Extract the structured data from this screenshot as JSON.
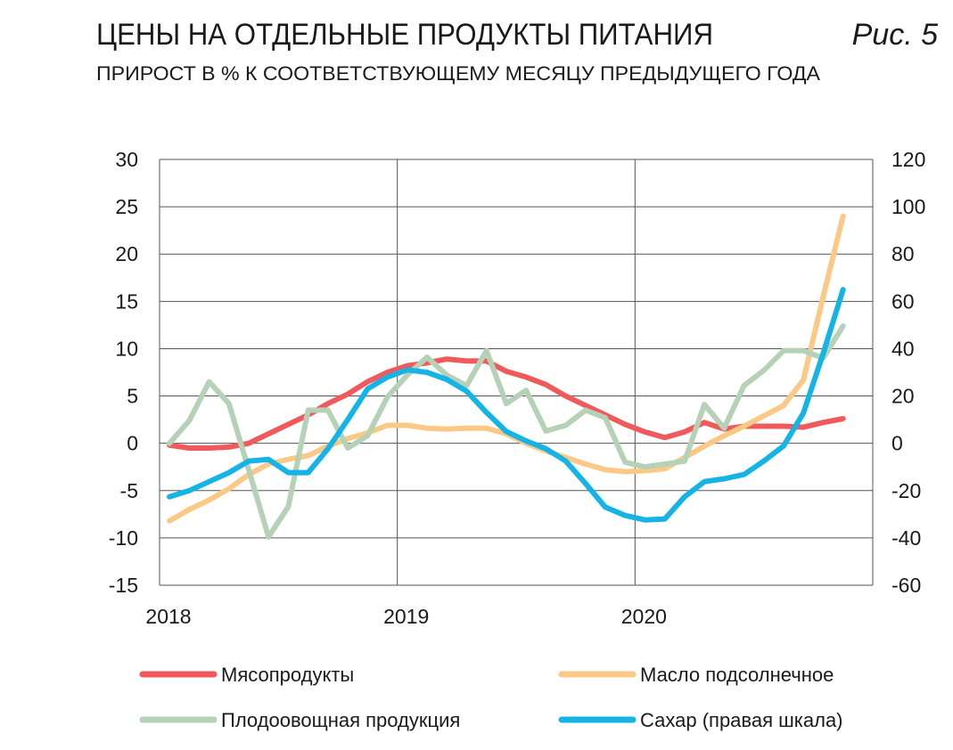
{
  "header": {
    "title": "ЦЕНЫ НА ОТДЕЛЬНЫЕ ПРОДУКТЫ ПИТАНИЯ",
    "figure_label": "Рис. 5",
    "subtitle": "ПРИРОСТ В % К СООТВЕТСТВУЮЩЕМУ МЕСЯЦУ ПРЕДЫДУЩЕГО ГОДА"
  },
  "chart_data": {
    "type": "line",
    "title": "ЦЕНЫ НА ОТДЕЛЬНЫЕ ПРОДУКТЫ ПИТАНИЯ",
    "subtitle": "ПРИРОСТ В % К СООТВЕТСТВУЮЩЕМУ МЕСЯЦУ ПРЕДЫДУЩЕГО ГОДА",
    "x_start": "2018-01",
    "x_end": "2020-11",
    "x_ticks": [
      "2018",
      "2019",
      "2020"
    ],
    "y_left": {
      "range": [
        -15,
        30
      ],
      "ticks": [
        "30",
        "25",
        "20",
        "15",
        "10",
        "5",
        "0",
        "-5",
        "-10",
        "-15"
      ]
    },
    "y_right": {
      "range": [
        -60,
        120
      ],
      "ticks": [
        "120",
        "100",
        "80",
        "60",
        "40",
        "20",
        "0",
        "-20",
        "-40",
        "-60"
      ]
    },
    "grid": true,
    "legend_position": "bottom",
    "series": [
      {
        "name": "Мясопродукты",
        "axis": "left",
        "color": "#f05a5b",
        "values": [
          -0.2,
          -0.5,
          -0.5,
          -0.4,
          0,
          1,
          2,
          3,
          4.2,
          5.2,
          6.5,
          7.5,
          8.2,
          8.5,
          8.9,
          8.7,
          8.7,
          7.6,
          7,
          6.2,
          5,
          4,
          3,
          2,
          1.2,
          0.6,
          1.2,
          2.2,
          1.5,
          1.8,
          1.8,
          1.8,
          1.7,
          2.2,
          2.6
        ]
      },
      {
        "name": "Масло подсолнечное",
        "axis": "left",
        "color": "#fbc985",
        "values": [
          -8.2,
          -7,
          -6,
          -4.8,
          -3.3,
          -2.2,
          -1.7,
          -1.3,
          -0.3,
          0.5,
          1.1,
          1.9,
          1.9,
          1.6,
          1.5,
          1.6,
          1.6,
          1.0,
          0,
          -0.8,
          -1.5,
          -2.2,
          -2.8,
          -3,
          -2.9,
          -2.7,
          -1.5,
          -0.3,
          0.8,
          1.8,
          2.9,
          4,
          6.7,
          15.5,
          24
        ]
      },
      {
        "name": "Плодоовощная продукция",
        "axis": "left",
        "color": "#b5d1b6",
        "values": [
          0,
          2.4,
          6.5,
          4.2,
          -2.8,
          -9.9,
          -6.7,
          3.5,
          3.5,
          -0.5,
          0.8,
          4.9,
          7.2,
          9.1,
          7.2,
          6.1,
          9.8,
          4.2,
          5.6,
          1.3,
          1.9,
          3.5,
          2.7,
          -2.0,
          -2.5,
          -2.2,
          -1.9,
          4.1,
          1.6,
          6.1,
          7.7,
          9.8,
          9.8,
          9.0,
          12.4
        ]
      },
      {
        "name": "Сахар (правая шкала)",
        "axis": "right",
        "color": "#14b4e6",
        "values": [
          -22.6,
          -20,
          -16.2,
          -12.4,
          -7.5,
          -6.8,
          -12.4,
          -12.4,
          -2.3,
          10,
          23,
          28,
          31,
          30,
          27,
          22,
          13,
          5,
          1,
          -2.3,
          -7.5,
          -17,
          -27,
          -30.5,
          -32.4,
          -32,
          -22.6,
          -16.2,
          -15,
          -13.2,
          -7.5,
          -1.1,
          12.8,
          38,
          65
        ]
      }
    ]
  }
}
